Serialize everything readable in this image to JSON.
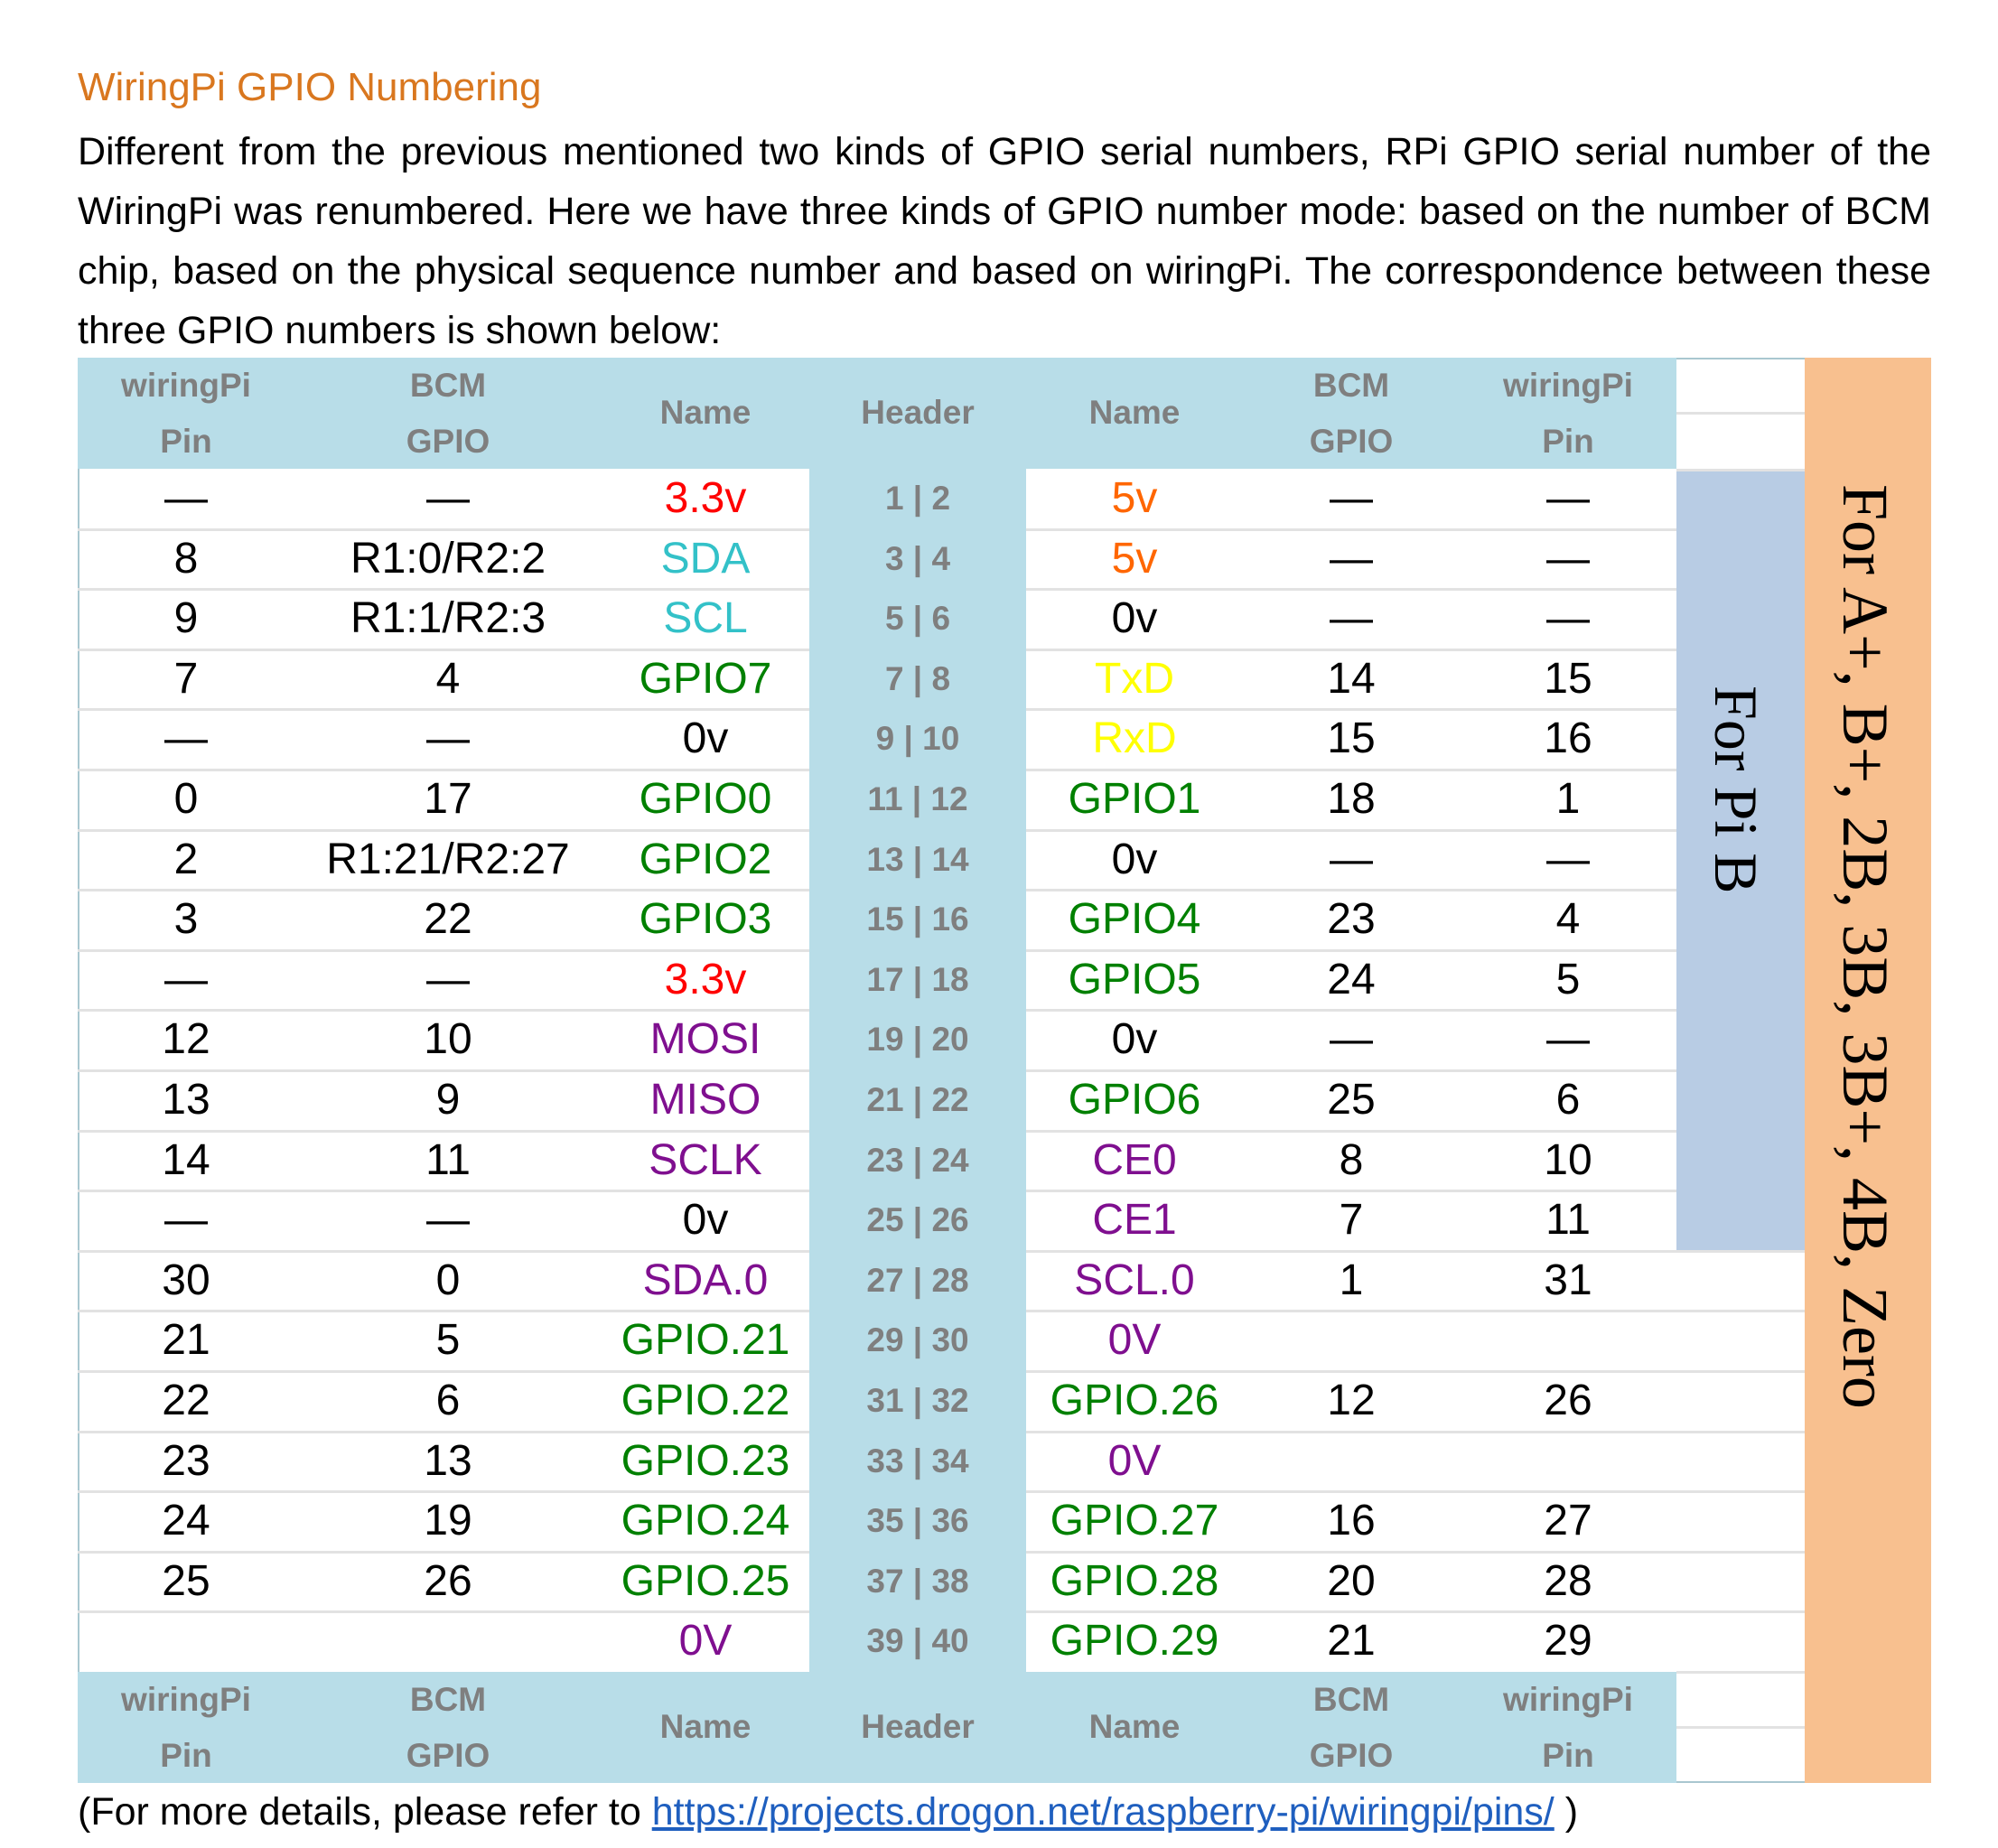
{
  "heading": "WiringPi GPIO Numbering",
  "intro": "Different from the previous mentioned two kinds of GPIO serial numbers, RPi GPIO serial number of the WiringPi was renumbered. Here we have three kinds of GPIO number mode: based on the number of BCM chip, based on the physical sequence number and based on wiringPi. The correspondence between these three GPIO numbers is shown below:",
  "table": {
    "header": [
      "wiringPi Pin",
      "BCM GPIO",
      "Name",
      "Header",
      "Name",
      "BCM GPIO",
      "wiringPi Pin"
    ],
    "header_lines": [
      [
        "wiringPi",
        "Pin"
      ],
      [
        "BCM",
        "GPIO"
      ],
      [
        "Name"
      ],
      [
        "Header"
      ],
      [
        "Name"
      ],
      [
        "BCM",
        "GPIO"
      ],
      [
        "wiringPi",
        "Pin"
      ]
    ],
    "colors": {
      "red": "#ff0000",
      "cyan": "#33c1c8",
      "green": "#008000",
      "orange": "#ff6600",
      "yellow": "#ffff00",
      "purple": "#7f0f8f",
      "black": "#000000"
    },
    "rows": [
      {
        "wpL": "—",
        "bcmL": "—",
        "nameL": "3.3v",
        "cL": "red",
        "header": "1 | 2",
        "nameR": "5v",
        "cR": "orange",
        "bcmR": "—",
        "wpR": "—"
      },
      {
        "wpL": "8",
        "bcmL": "R1:0/R2:2",
        "nameL": "SDA",
        "cL": "cyan",
        "header": "3 | 4",
        "nameR": "5v",
        "cR": "orange",
        "bcmR": "—",
        "wpR": "—"
      },
      {
        "wpL": "9",
        "bcmL": "R1:1/R2:3",
        "nameL": "SCL",
        "cL": "cyan",
        "header": "5 | 6",
        "nameR": "0v",
        "cR": "black",
        "bcmR": "—",
        "wpR": "—"
      },
      {
        "wpL": "7",
        "bcmL": "4",
        "nameL": "GPIO7",
        "cL": "green",
        "header": "7 | 8",
        "nameR": "TxD",
        "cR": "yellow",
        "bcmR": "14",
        "wpR": "15"
      },
      {
        "wpL": "—",
        "bcmL": "—",
        "nameL": "0v",
        "cL": "black",
        "header": "9 | 10",
        "nameR": "RxD",
        "cR": "yellow",
        "bcmR": "15",
        "wpR": "16"
      },
      {
        "wpL": "0",
        "bcmL": "17",
        "nameL": "GPIO0",
        "cL": "green",
        "header": "11 | 12",
        "nameR": "GPIO1",
        "cR": "green",
        "bcmR": "18",
        "wpR": "1"
      },
      {
        "wpL": "2",
        "bcmL": "R1:21/R2:27",
        "nameL": "GPIO2",
        "cL": "green",
        "header": "13 | 14",
        "nameR": "0v",
        "cR": "black",
        "bcmR": "—",
        "wpR": "—"
      },
      {
        "wpL": "3",
        "bcmL": "22",
        "nameL": "GPIO3",
        "cL": "green",
        "header": "15 | 16",
        "nameR": "GPIO4",
        "cR": "green",
        "bcmR": "23",
        "wpR": "4"
      },
      {
        "wpL": "—",
        "bcmL": "—",
        "nameL": "3.3v",
        "cL": "red",
        "header": "17 | 18",
        "nameR": "GPIO5",
        "cR": "green",
        "bcmR": "24",
        "wpR": "5"
      },
      {
        "wpL": "12",
        "bcmL": "10",
        "nameL": "MOSI",
        "cL": "purple",
        "header": "19 | 20",
        "nameR": "0v",
        "cR": "black",
        "bcmR": "—",
        "wpR": "—"
      },
      {
        "wpL": "13",
        "bcmL": "9",
        "nameL": "MISO",
        "cL": "purple",
        "header": "21 | 22",
        "nameR": "GPIO6",
        "cR": "green",
        "bcmR": "25",
        "wpR": "6"
      },
      {
        "wpL": "14",
        "bcmL": "11",
        "nameL": "SCLK",
        "cL": "purple",
        "header": "23 | 24",
        "nameR": "CE0",
        "cR": "purple",
        "bcmR": "8",
        "wpR": "10"
      },
      {
        "wpL": "—",
        "bcmL": "—",
        "nameL": "0v",
        "cL": "black",
        "header": "25 | 26",
        "nameR": "CE1",
        "cR": "purple",
        "bcmR": "7",
        "wpR": "11"
      },
      {
        "wpL": "30",
        "bcmL": "0",
        "nameL": "SDA.0",
        "cL": "purple",
        "header": "27 | 28",
        "nameR": "SCL.0",
        "cR": "purple",
        "bcmR": "1",
        "wpR": "31"
      },
      {
        "wpL": "21",
        "bcmL": "5",
        "nameL": "GPIO.21",
        "cL": "green",
        "header": "29 | 30",
        "nameR": "0V",
        "cR": "purple",
        "bcmR": "",
        "wpR": ""
      },
      {
        "wpL": "22",
        "bcmL": "6",
        "nameL": "GPIO.22",
        "cL": "green",
        "header": "31 | 32",
        "nameR": "GPIO.26",
        "cR": "green",
        "bcmR": "12",
        "wpR": "26"
      },
      {
        "wpL": "23",
        "bcmL": "13",
        "nameL": "GPIO.23",
        "cL": "green",
        "header": "33 | 34",
        "nameR": "0V",
        "cR": "purple",
        "bcmR": "",
        "wpR": ""
      },
      {
        "wpL": "24",
        "bcmL": "19",
        "nameL": "GPIO.24",
        "cL": "green",
        "header": "35 | 36",
        "nameR": "GPIO.27",
        "cR": "green",
        "bcmR": "16",
        "wpR": "27"
      },
      {
        "wpL": "25",
        "bcmL": "26",
        "nameL": "GPIO.25",
        "cL": "green",
        "header": "37 | 38",
        "nameR": "GPIO.28",
        "cR": "green",
        "bcmR": "20",
        "wpR": "28"
      },
      {
        "wpL": "",
        "bcmL": "",
        "nameL": "0V",
        "cL": "purple",
        "header": "39 | 40",
        "nameR": "GPIO.29",
        "cR": "green",
        "bcmR": "21",
        "wpR": "29"
      }
    ],
    "label_pi_b": "For Pi B",
    "label_aplus": "For A+, B+, 2B, 3B, 3B+, 4B, Zero",
    "header_color": "#b8dde8",
    "pi_b_color": "#b8cce4",
    "aplus_color": "#f8c08f"
  },
  "footer": {
    "prefix": "(For more details, please refer to ",
    "link": "https://projects.drogon.net/raspberry-pi/wiringpi/pins/",
    "suffix": " )"
  }
}
